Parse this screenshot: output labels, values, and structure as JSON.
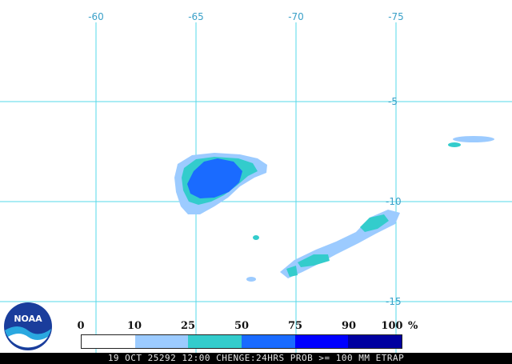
{
  "map": {
    "lon_labels": [
      "-60",
      "-65",
      "-70",
      "-75"
    ],
    "lat_labels": [
      "-5",
      "-10",
      "-15"
    ],
    "grid_color": "#55d8e8"
  },
  "legend": {
    "ticks": [
      "0",
      "10",
      "25",
      "50",
      "75",
      "90",
      "100"
    ],
    "unit": "%",
    "colors": [
      "#ffffff",
      "#9ccbff",
      "#33cccc",
      "#1a6bff",
      "#0000ff",
      "#0000a0"
    ]
  },
  "status": {
    "text": "19 OCT 25292 12:00 CHENGE:24HRS PROB >= 100 MM ETRAP"
  },
  "logo": {
    "text": "NOAA"
  }
}
